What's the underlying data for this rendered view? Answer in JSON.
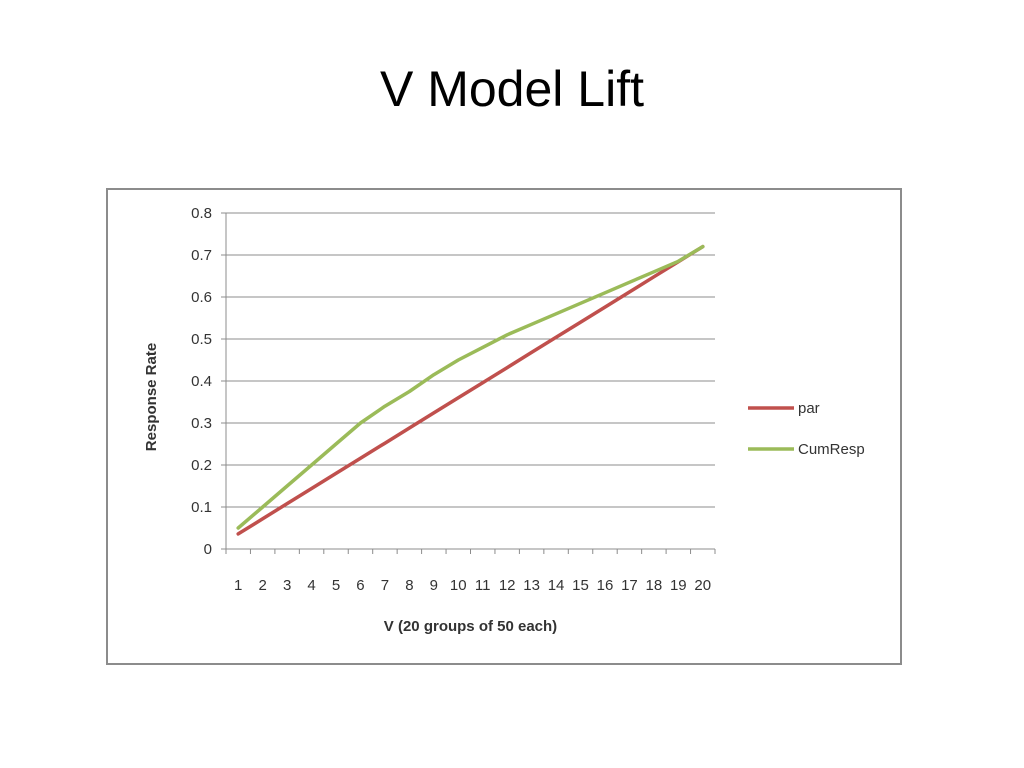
{
  "slide": {
    "title": "V Model Lift"
  },
  "chart_data": {
    "type": "line",
    "title": "",
    "xlabel": "V (20 groups of 50 each)",
    "ylabel": "Response Rate",
    "categories": [
      "1",
      "2",
      "3",
      "4",
      "5",
      "6",
      "7",
      "8",
      "9",
      "10",
      "11",
      "12",
      "13",
      "14",
      "15",
      "16",
      "17",
      "18",
      "19",
      "20"
    ],
    "ylim": [
      0,
      0.8
    ],
    "yticks": [
      "0",
      "0.1",
      "0.2",
      "0.3",
      "0.4",
      "0.5",
      "0.6",
      "0.7",
      "0.8"
    ],
    "grid": true,
    "legend_position": "right",
    "series": [
      {
        "name": "par",
        "color": "#c0504d",
        "values": [
          0.036,
          0.072,
          0.108,
          0.144,
          0.18,
          0.216,
          0.252,
          0.288,
          0.324,
          0.36,
          0.396,
          0.432,
          0.468,
          0.504,
          0.54,
          0.576,
          0.612,
          0.648,
          0.684,
          0.72
        ]
      },
      {
        "name": "CumResp",
        "color": "#9bbb59",
        "values": [
          0.05,
          0.1,
          0.15,
          0.2,
          0.25,
          0.3,
          0.34,
          0.375,
          0.415,
          0.45,
          0.48,
          0.51,
          0.535,
          0.56,
          0.585,
          0.61,
          0.635,
          0.66,
          0.685,
          0.72
        ]
      }
    ]
  }
}
